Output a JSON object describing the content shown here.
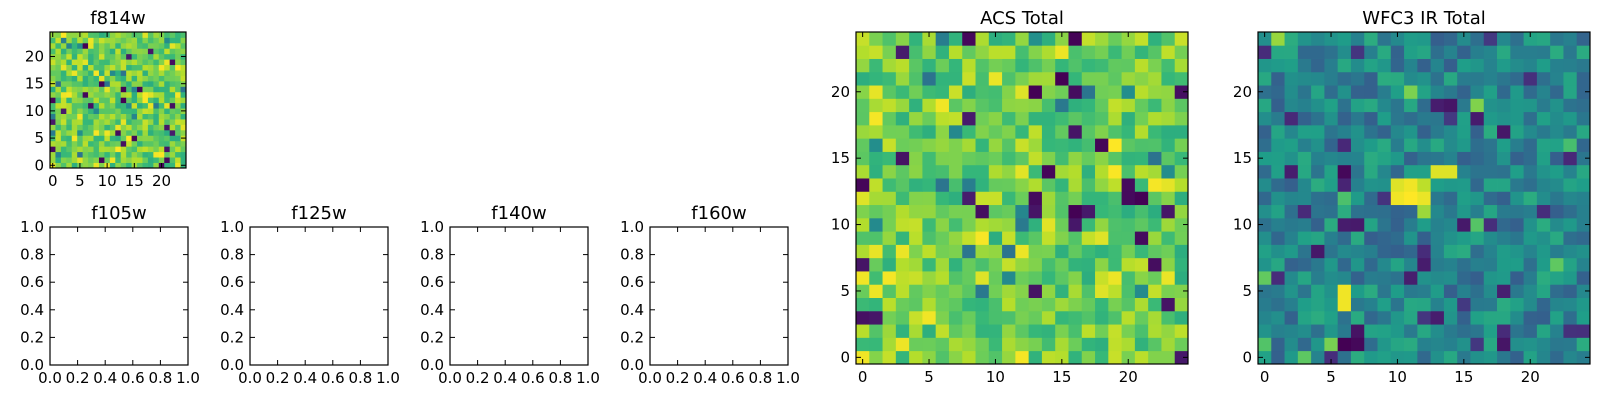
{
  "chart_data": [
    {
      "type": "heatmap",
      "title": "f814w",
      "cols": 25,
      "rows": 25,
      "xticks": [
        0,
        5,
        10,
        15,
        20
      ],
      "xtick_labels": [
        "0",
        "5",
        "10",
        "15",
        "20"
      ],
      "yticks": [
        0,
        5,
        10,
        15,
        20
      ],
      "ytick_labels": [
        "0",
        "5",
        "10",
        "15",
        "20"
      ],
      "colormap": "viridis",
      "z_description": "dense 25x25 noise field, mostly green-yellow with occasional dark pixels"
    },
    {
      "type": "empty",
      "title": "f105w",
      "xlim": [
        0,
        1
      ],
      "ylim": [
        0,
        1
      ],
      "xtick_labels": [
        "0.0",
        "0.2",
        "0.4",
        "0.6",
        "0.8",
        "1.0"
      ],
      "ytick_labels": [
        "0.0",
        "0.2",
        "0.4",
        "0.6",
        "0.8",
        "1.0"
      ]
    },
    {
      "type": "empty",
      "title": "f125w",
      "xlim": [
        0,
        1
      ],
      "ylim": [
        0,
        1
      ],
      "xtick_labels": [
        "0.0",
        "0.2",
        "0.4",
        "0.6",
        "0.8",
        "1.0"
      ],
      "ytick_labels": [
        "0.0",
        "0.2",
        "0.4",
        "0.6",
        "0.8",
        "1.0"
      ]
    },
    {
      "type": "empty",
      "title": "f140w",
      "xlim": [
        0,
        1
      ],
      "ylim": [
        0,
        1
      ],
      "xtick_labels": [
        "0.0",
        "0.2",
        "0.4",
        "0.6",
        "0.8",
        "1.0"
      ],
      "ytick_labels": [
        "0.0",
        "0.2",
        "0.4",
        "0.6",
        "0.8",
        "1.0"
      ]
    },
    {
      "type": "empty",
      "title": "f160w",
      "xlim": [
        0,
        1
      ],
      "ylim": [
        0,
        1
      ],
      "xtick_labels": [
        "0.0",
        "0.2",
        "0.4",
        "0.6",
        "0.8",
        "1.0"
      ],
      "ytick_labels": [
        "0.0",
        "0.2",
        "0.4",
        "0.6",
        "0.8",
        "1.0"
      ]
    },
    {
      "type": "heatmap",
      "title": "ACS Total",
      "cols": 25,
      "rows": 25,
      "xticks": [
        0,
        5,
        10,
        15,
        20
      ],
      "xtick_labels": [
        "0",
        "5",
        "10",
        "15",
        "20"
      ],
      "yticks": [
        0,
        5,
        10,
        15,
        20
      ],
      "ytick_labels": [
        "0",
        "5",
        "10",
        "15",
        "20"
      ],
      "colormap": "viridis",
      "z_description": "dense 25x25 noise field, mostly green-yellow with scattered dark-purple pixels"
    },
    {
      "type": "heatmap",
      "title": "WFC3 IR Total",
      "cols": 25,
      "rows": 25,
      "xticks": [
        0,
        5,
        10,
        15,
        20
      ],
      "xtick_labels": [
        "0",
        "5",
        "10",
        "15",
        "20"
      ],
      "yticks": [
        0,
        5,
        10,
        15,
        20
      ],
      "ytick_labels": [
        "0",
        "5",
        "10",
        "15",
        "20"
      ],
      "colormap": "viridis",
      "z_description": "25x25 noise field, mostly blue-teal; bright yellow blob around x 10-12, y 12-13; bright pixels near (6,4-5) and (13-14,14); dark pixels around (6-7,1) and (6,14)"
    }
  ]
}
